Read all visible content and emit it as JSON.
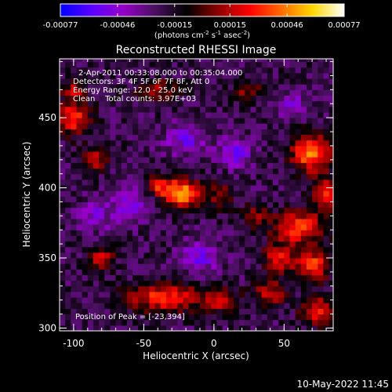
{
  "chart_data": {
    "type": "heatmap",
    "title": "Reconstructed RHESSI Image",
    "xlabel": "Heliocentric X (arcsec)",
    "ylabel": "Heliocentric Y (arcsec)",
    "x_range": [
      -110,
      85
    ],
    "y_range": [
      298,
      492
    ],
    "x_ticks": [
      "-100",
      "-50",
      "0",
      "50"
    ],
    "x_tick_values": [
      -100,
      -50,
      0,
      50
    ],
    "y_ticks": [
      "300",
      "350",
      "400",
      "450"
    ],
    "y_tick_values": [
      300,
      350,
      400,
      450
    ],
    "colorbar": {
      "range": [
        -0.00077,
        0.00077
      ],
      "tick_labels": [
        "-0.00077",
        "-0.00046",
        "-0.00015",
        "0.00015",
        "0.00046",
        "0.00077"
      ],
      "tick_values": [
        -0.00077,
        -0.00046,
        -0.00015,
        0.00015,
        0.00046,
        0.00077
      ],
      "units_prefix": "(photons cm",
      "units_exp1": "-2",
      "units_mid1": " s",
      "units_exp2": "-1",
      "units_mid2": " asec",
      "units_exp3": "-2",
      "units_suffix": ")",
      "colors": [
        "#0000ff",
        "#5a00ff",
        "#9600c8",
        "#4a1060",
        "#000000",
        "#8c0000",
        "#ff0000",
        "#ff6a00",
        "#ffd700",
        "#ffffff"
      ]
    },
    "annotations": [
      "2-Apr-2011 00:33:08.000 to 00:35:04.000",
      "Detectors: 3F 4F 5F 6F 7F 8F, Att 0",
      "Energy Range: 12.0 - 25.0 keV",
      "Clean    Total counts: 3.97E+03"
    ],
    "peak_label": "Position of Peak = [-23,394]",
    "peak": [
      -23,
      394
    ],
    "sources": [
      {
        "x": -23,
        "y": 396,
        "amp": 1.0,
        "sx": 9,
        "sy": 7
      },
      {
        "x": -40,
        "y": 402,
        "amp": 0.55,
        "sx": 7,
        "sy": 5
      },
      {
        "x": -100,
        "y": 450,
        "amp": 0.7,
        "sx": 8,
        "sy": 8
      },
      {
        "x": -85,
        "y": 420,
        "amp": 0.55,
        "sx": 6,
        "sy": 6
      },
      {
        "x": -100,
        "y": 470,
        "amp": 0.45,
        "sx": 6,
        "sy": 5
      },
      {
        "x": 70,
        "y": 425,
        "amp": 0.9,
        "sx": 10,
        "sy": 9
      },
      {
        "x": 80,
        "y": 395,
        "amp": 0.65,
        "sx": 7,
        "sy": 8
      },
      {
        "x": 60,
        "y": 372,
        "amp": 0.75,
        "sx": 12,
        "sy": 8
      },
      {
        "x": 45,
        "y": 350,
        "amp": 0.6,
        "sx": 7,
        "sy": 7
      },
      {
        "x": 70,
        "y": 345,
        "amp": 0.7,
        "sx": 9,
        "sy": 8
      },
      {
        "x": 40,
        "y": 325,
        "amp": 0.55,
        "sx": 8,
        "sy": 6
      },
      {
        "x": 75,
        "y": 312,
        "amp": 0.65,
        "sx": 9,
        "sy": 7
      },
      {
        "x": -35,
        "y": 322,
        "amp": 0.7,
        "sx": 18,
        "sy": 7
      },
      {
        "x": 5,
        "y": 320,
        "amp": 0.45,
        "sx": 9,
        "sy": 6
      },
      {
        "x": -80,
        "y": 350,
        "amp": 0.6,
        "sx": 6,
        "sy": 6
      },
      {
        "x": -40,
        "y": 470,
        "amp": 0.45,
        "sx": 10,
        "sy": 5
      },
      {
        "x": 25,
        "y": 470,
        "amp": 0.4,
        "sx": 7,
        "sy": 5
      },
      {
        "x": 5,
        "y": 395,
        "amp": 0.35,
        "sx": 6,
        "sy": 8
      },
      {
        "x": 30,
        "y": 380,
        "amp": 0.35,
        "sx": 6,
        "sy": 6
      },
      {
        "x": -60,
        "y": 390,
        "amp": -0.35,
        "sx": 10,
        "sy": 10
      },
      {
        "x": -20,
        "y": 435,
        "amp": -0.35,
        "sx": 10,
        "sy": 8
      },
      {
        "x": 15,
        "y": 425,
        "amp": -0.4,
        "sx": 8,
        "sy": 8
      },
      {
        "x": -10,
        "y": 350,
        "amp": -0.35,
        "sx": 10,
        "sy": 8
      },
      {
        "x": -85,
        "y": 380,
        "amp": -0.3,
        "sx": 8,
        "sy": 8
      },
      {
        "x": 55,
        "y": 460,
        "amp": -0.3,
        "sx": 8,
        "sy": 6
      }
    ]
  },
  "footer": {
    "timestamp": "10-May-2022 11:45"
  }
}
